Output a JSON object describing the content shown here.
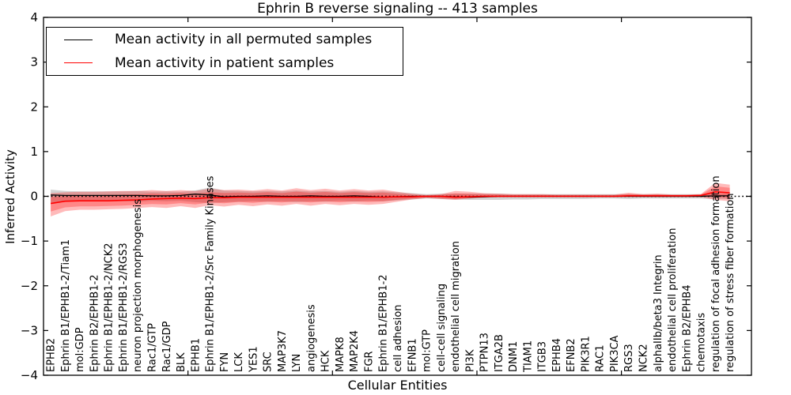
{
  "title": "Ephrin B reverse signaling -- 413 samples",
  "axes": {
    "x_label": "Cellular Entities",
    "y_label": "Inferred Activity",
    "y_tick_values": [
      4,
      3,
      2,
      1,
      0,
      -1,
      -2,
      -3,
      -4
    ],
    "y_tick_labels": [
      "4",
      "3",
      "2",
      "1",
      "0",
      "−1",
      "−2",
      "−3",
      "−4"
    ],
    "x_tick_positions": [
      10,
      20,
      30,
      40
    ]
  },
  "legend": {
    "entries": [
      {
        "label": "Mean activity in all permuted samples",
        "color": "#000000"
      },
      {
        "label": "Mean activity in patient samples",
        "color": "#ff0000"
      }
    ]
  },
  "chart_data": {
    "type": "line",
    "title": "Ephrin B reverse signaling -- 413 samples",
    "xlabel": "Cellular Entities",
    "ylabel": "Inferred Activity",
    "ylim": [
      -4,
      4
    ],
    "grid": false,
    "legend_position": "upper left",
    "zero_line": {
      "y": 0,
      "style": "dotted",
      "color": "#000000"
    },
    "categories": [
      "EPHB2",
      "Ephrin B1/EPHB1-2/Tiam1",
      "mol:GDP",
      "Ephrin B2/EPHB1-2",
      "Ephrin B1/EPHB1-2/NCK2",
      "Ephrin B1/EPHB1-2/RGS3",
      "neuron projection morphogenesis",
      "Rac1/GTP",
      "Rac1/GDP",
      "BLK",
      "EPHB1",
      "Ephrin B1/EPHB1-2/Src Family Kinases",
      "FYN",
      "LCK",
      "YES1",
      "SRC",
      "MAP3K7",
      "LYN",
      "angiogenesis",
      "HCK",
      "MAPK8",
      "MAP2K4",
      "FGR",
      "Ephrin B1/EPHB1-2",
      "cell adhesion",
      "EFNB1",
      "mol:GTP",
      "cell-cell signaling",
      "endothelial cell migration",
      "PI3K",
      "PTPN13",
      "ITGA2B",
      "DNM1",
      "TIAM1",
      "ITGB3",
      "EPHB4",
      "EFNB2",
      "PIK3R1",
      "RAC1",
      "PIK3CA",
      "RGS3",
      "NCK2",
      "alphaIIb/beta3 Integrin",
      "endothelial cell proliferation",
      "Ephrin B2/EPHB4",
      "chemotaxis",
      "regulation of focal adhesion formation",
      "regulation of stress fiber formation"
    ],
    "series": [
      {
        "name": "Mean activity in all permuted samples",
        "color": "#000000",
        "values": [
          0.03,
          0.02,
          0.02,
          0.02,
          0.02,
          0.02,
          0.02,
          0.01,
          0.01,
          0.02,
          0.05,
          0.03,
          -0.01,
          0,
          0,
          0.01,
          0,
          0,
          0.01,
          0,
          0,
          0.01,
          0,
          -0.02,
          -0.01,
          0,
          0,
          0,
          -0.01,
          -0.02,
          -0.01,
          0,
          0,
          0,
          0,
          0,
          0,
          0,
          0,
          0,
          0,
          0,
          0,
          0,
          0,
          0,
          0.01,
          0.01
        ]
      },
      {
        "name": "Mean activity in patient samples",
        "color": "#ff0000",
        "values": [
          -0.16,
          -0.11,
          -0.1,
          -0.1,
          -0.1,
          -0.09,
          -0.08,
          -0.06,
          -0.05,
          -0.04,
          -0.05,
          -0.03,
          -0.03,
          -0.02,
          -0.02,
          -0.02,
          -0.02,
          -0.02,
          -0.02,
          -0.02,
          -0.02,
          -0.02,
          -0.02,
          -0.02,
          -0.01,
          -0.01,
          0,
          0,
          -0.02,
          -0.01,
          0,
          0,
          0,
          0,
          0,
          0,
          0,
          0,
          0,
          0,
          0.01,
          0.01,
          0.01,
          0.01,
          0.01,
          0.02,
          0.1,
          0.08
        ]
      }
    ],
    "bands": [
      {
        "name": "permuted-samples-range",
        "fill": "rgba(130,130,130,0.35)",
        "upper": [
          0.15,
          0.12,
          0.11,
          0.11,
          0.11,
          0.11,
          0.12,
          0.1,
          0.11,
          0.1,
          0.13,
          0.2,
          0.13,
          0.12,
          0.11,
          0.12,
          0.11,
          0.13,
          0.11,
          0.12,
          0.1,
          0.12,
          0.1,
          0.11,
          0.09,
          0.07,
          0.05,
          0.06,
          0.06,
          0.06,
          0.06,
          0.06,
          0.05,
          0.05,
          0.05,
          0.05,
          0.05,
          0.05,
          0.05,
          0.05,
          0.05,
          0.05,
          0.05,
          0.05,
          0.05,
          0.05,
          0.06,
          0.06
        ],
        "lower": [
          -0.14,
          -0.12,
          -0.11,
          -0.11,
          -0.11,
          -0.11,
          -0.12,
          -0.1,
          -0.11,
          -0.1,
          -0.13,
          -0.15,
          -0.13,
          -0.12,
          -0.11,
          -0.12,
          -0.11,
          -0.13,
          -0.11,
          -0.12,
          -0.1,
          -0.12,
          -0.1,
          -0.11,
          -0.09,
          -0.07,
          -0.05,
          -0.06,
          -0.07,
          -0.08,
          -0.08,
          -0.08,
          -0.07,
          -0.07,
          -0.06,
          -0.06,
          -0.06,
          -0.06,
          -0.05,
          -0.05,
          -0.06,
          -0.05,
          -0.05,
          -0.05,
          -0.05,
          -0.05,
          -0.06,
          -0.06
        ]
      },
      {
        "name": "patient-samples-range",
        "fill": "rgba(255,0,0,0.27)",
        "inner_scale": 0.62,
        "upper": [
          0.07,
          0.09,
          0.1,
          0.1,
          0.11,
          0.12,
          0.12,
          0.14,
          0.12,
          0.14,
          0.12,
          0.17,
          0.14,
          0.15,
          0.13,
          0.16,
          0.13,
          0.18,
          0.14,
          0.17,
          0.13,
          0.16,
          0.13,
          0.15,
          0.1,
          0.06,
          0.03,
          0.05,
          0.12,
          0.1,
          0.07,
          0.06,
          0.05,
          0.05,
          0.05,
          0.04,
          0.04,
          0.04,
          0.04,
          0.04,
          0.08,
          0.05,
          0.06,
          0.04,
          0.04,
          0.05,
          0.3,
          0.26
        ],
        "lower": [
          -0.45,
          -0.33,
          -0.3,
          -0.3,
          -0.29,
          -0.28,
          -0.26,
          -0.24,
          -0.26,
          -0.22,
          -0.26,
          -0.2,
          -0.23,
          -0.19,
          -0.22,
          -0.18,
          -0.21,
          -0.17,
          -0.21,
          -0.17,
          -0.2,
          -0.17,
          -0.19,
          -0.17,
          -0.12,
          -0.07,
          -0.04,
          -0.06,
          -0.08,
          -0.05,
          -0.03,
          -0.02,
          -0.02,
          -0.02,
          -0.02,
          -0.02,
          -0.02,
          -0.02,
          -0.02,
          -0.02,
          -0.02,
          -0.02,
          -0.02,
          -0.02,
          -0.02,
          -0.02,
          -0.08,
          -0.11
        ]
      }
    ]
  }
}
